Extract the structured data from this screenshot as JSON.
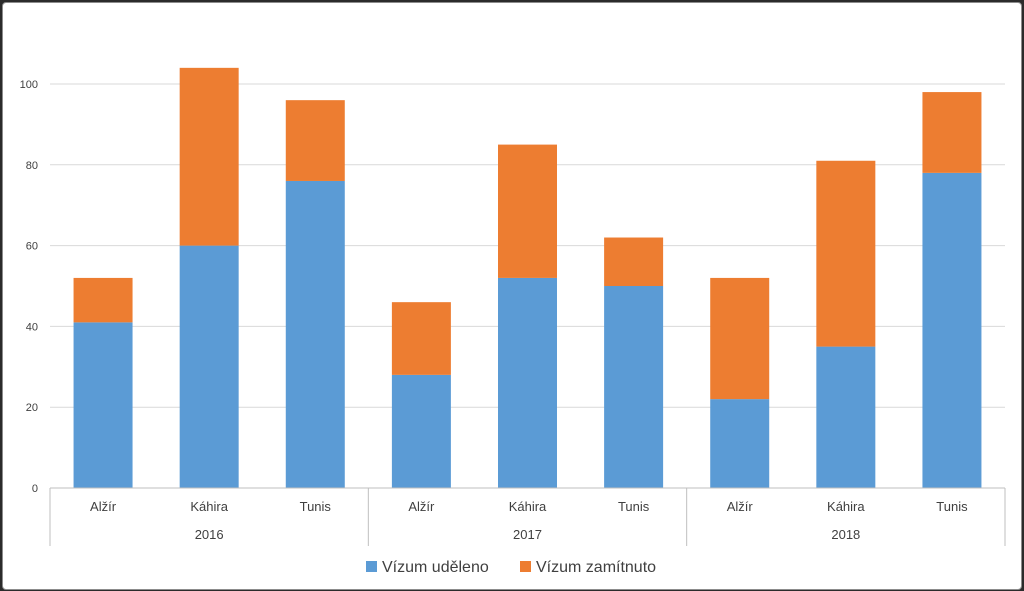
{
  "chart_data": {
    "type": "bar",
    "stacked": true,
    "groups": [
      {
        "label": "2016",
        "categories": [
          "Alžír",
          "Káhira",
          "Tunis"
        ]
      },
      {
        "label": "2017",
        "categories": [
          "Alžír",
          "Káhira",
          "Tunis"
        ]
      },
      {
        "label": "2018",
        "categories": [
          "Alžír",
          "Káhira",
          "Tunis"
        ]
      }
    ],
    "series": [
      {
        "name": "Vízum uděleno",
        "color": "#5b9bd5",
        "values": [
          41,
          60,
          76,
          28,
          52,
          50,
          22,
          35,
          78
        ]
      },
      {
        "name": "Vízum zamítnuto",
        "color": "#ed7d31",
        "values": [
          11,
          44,
          20,
          18,
          33,
          12,
          30,
          46,
          20
        ]
      }
    ],
    "yticks": [
      0,
      20,
      40,
      60,
      80,
      100
    ],
    "ylim": [
      0,
      110
    ],
    "grid": true,
    "legend_position": "bottom"
  }
}
